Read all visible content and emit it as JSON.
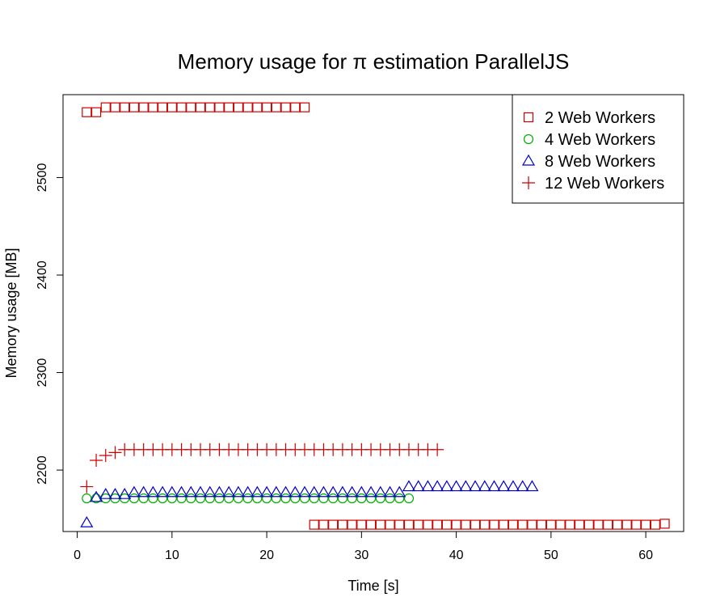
{
  "chart_data": {
    "type": "scatter",
    "title": "Memory usage for π estimation ParallelJS",
    "xlabel": "Time [s]",
    "ylabel": "Memory usage [MB]",
    "xlim": [
      -1.5,
      64
    ],
    "ylim": [
      2137,
      2585
    ],
    "x_ticks": [
      0,
      10,
      20,
      30,
      40,
      50,
      60
    ],
    "y_ticks": [
      2200,
      2300,
      2400,
      2500
    ],
    "grid": false,
    "legend_position": "top-right",
    "colors": {
      "red": "#cc0000",
      "green": "#00aa00",
      "blue": "#0000cc"
    },
    "series": [
      {
        "name": "2 Web Workers",
        "marker": "square",
        "color": "#cc0000",
        "points": [
          [
            1,
            2567
          ],
          [
            2,
            2567
          ],
          [
            3,
            2572
          ],
          [
            4,
            2572
          ],
          [
            5,
            2572
          ],
          [
            6,
            2572
          ],
          [
            7,
            2572
          ],
          [
            8,
            2572
          ],
          [
            9,
            2572
          ],
          [
            10,
            2572
          ],
          [
            11,
            2572
          ],
          [
            12,
            2572
          ],
          [
            13,
            2572
          ],
          [
            14,
            2572
          ],
          [
            15,
            2572
          ],
          [
            16,
            2572
          ],
          [
            17,
            2572
          ],
          [
            18,
            2572
          ],
          [
            19,
            2572
          ],
          [
            20,
            2572
          ],
          [
            21,
            2572
          ],
          [
            22,
            2572
          ],
          [
            23,
            2572
          ],
          [
            24,
            2572
          ],
          [
            25,
            2144
          ],
          [
            26,
            2144
          ],
          [
            27,
            2144
          ],
          [
            28,
            2144
          ],
          [
            29,
            2144
          ],
          [
            30,
            2144
          ],
          [
            31,
            2144
          ],
          [
            32,
            2144
          ],
          [
            33,
            2144
          ],
          [
            34,
            2144
          ],
          [
            35,
            2144
          ],
          [
            36,
            2144
          ],
          [
            37,
            2144
          ],
          [
            38,
            2144
          ],
          [
            39,
            2144
          ],
          [
            40,
            2144
          ],
          [
            41,
            2144
          ],
          [
            42,
            2144
          ],
          [
            43,
            2144
          ],
          [
            44,
            2144
          ],
          [
            45,
            2144
          ],
          [
            46,
            2144
          ],
          [
            47,
            2144
          ],
          [
            48,
            2144
          ],
          [
            49,
            2144
          ],
          [
            50,
            2144
          ],
          [
            51,
            2144
          ],
          [
            52,
            2144
          ],
          [
            53,
            2144
          ],
          [
            54,
            2144
          ],
          [
            55,
            2144
          ],
          [
            56,
            2144
          ],
          [
            57,
            2144
          ],
          [
            58,
            2144
          ],
          [
            59,
            2144
          ],
          [
            60,
            2144
          ],
          [
            61,
            2144
          ],
          [
            62,
            2145
          ]
        ]
      },
      {
        "name": "4 Web Workers",
        "marker": "circle",
        "color": "#00aa00",
        "points": [
          [
            1,
            2171
          ],
          [
            2,
            2171
          ],
          [
            3,
            2171
          ],
          [
            4,
            2171
          ],
          [
            5,
            2171
          ],
          [
            6,
            2171
          ],
          [
            7,
            2171
          ],
          [
            8,
            2171
          ],
          [
            9,
            2171
          ],
          [
            10,
            2171
          ],
          [
            11,
            2171
          ],
          [
            12,
            2171
          ],
          [
            13,
            2171
          ],
          [
            14,
            2171
          ],
          [
            15,
            2171
          ],
          [
            16,
            2171
          ],
          [
            17,
            2171
          ],
          [
            18,
            2171
          ],
          [
            19,
            2171
          ],
          [
            20,
            2171
          ],
          [
            21,
            2171
          ],
          [
            22,
            2171
          ],
          [
            23,
            2171
          ],
          [
            24,
            2171
          ],
          [
            25,
            2171
          ],
          [
            26,
            2171
          ],
          [
            27,
            2171
          ],
          [
            28,
            2171
          ],
          [
            29,
            2171
          ],
          [
            30,
            2171
          ],
          [
            31,
            2171
          ],
          [
            32,
            2171
          ],
          [
            33,
            2171
          ],
          [
            34,
            2171
          ],
          [
            35,
            2171
          ]
        ]
      },
      {
        "name": "8 Web Workers",
        "marker": "triangle",
        "color": "#0000cc",
        "points": [
          [
            1,
            2146
          ],
          [
            2,
            2172
          ],
          [
            3,
            2175
          ],
          [
            4,
            2175
          ],
          [
            5,
            2175
          ],
          [
            6,
            2177
          ],
          [
            7,
            2177
          ],
          [
            8,
            2177
          ],
          [
            9,
            2177
          ],
          [
            10,
            2177
          ],
          [
            11,
            2177
          ],
          [
            12,
            2177
          ],
          [
            13,
            2177
          ],
          [
            14,
            2177
          ],
          [
            15,
            2177
          ],
          [
            16,
            2177
          ],
          [
            17,
            2177
          ],
          [
            18,
            2177
          ],
          [
            19,
            2177
          ],
          [
            20,
            2177
          ],
          [
            21,
            2177
          ],
          [
            22,
            2177
          ],
          [
            23,
            2177
          ],
          [
            24,
            2177
          ],
          [
            25,
            2177
          ],
          [
            26,
            2177
          ],
          [
            27,
            2177
          ],
          [
            28,
            2177
          ],
          [
            29,
            2177
          ],
          [
            30,
            2177
          ],
          [
            31,
            2177
          ],
          [
            32,
            2177
          ],
          [
            33,
            2177
          ],
          [
            34,
            2177
          ],
          [
            35,
            2183
          ],
          [
            36,
            2183
          ],
          [
            37,
            2183
          ],
          [
            38,
            2183
          ],
          [
            39,
            2183
          ],
          [
            40,
            2183
          ],
          [
            41,
            2183
          ],
          [
            42,
            2183
          ],
          [
            43,
            2183
          ],
          [
            44,
            2183
          ],
          [
            45,
            2183
          ],
          [
            46,
            2183
          ],
          [
            47,
            2183
          ],
          [
            48,
            2183
          ]
        ]
      },
      {
        "name": "12 Web Workers",
        "marker": "plus",
        "color": "#cc0000",
        "points": [
          [
            1,
            2183
          ],
          [
            2,
            2210
          ],
          [
            3,
            2215
          ],
          [
            4,
            2218
          ],
          [
            5,
            2221
          ],
          [
            6,
            2221
          ],
          [
            7,
            2221
          ],
          [
            8,
            2221
          ],
          [
            9,
            2221
          ],
          [
            10,
            2221
          ],
          [
            11,
            2221
          ],
          [
            12,
            2221
          ],
          [
            13,
            2221
          ],
          [
            14,
            2221
          ],
          [
            15,
            2221
          ],
          [
            16,
            2221
          ],
          [
            17,
            2221
          ],
          [
            18,
            2221
          ],
          [
            19,
            2221
          ],
          [
            20,
            2221
          ],
          [
            21,
            2221
          ],
          [
            22,
            2221
          ],
          [
            23,
            2221
          ],
          [
            24,
            2221
          ],
          [
            25,
            2221
          ],
          [
            26,
            2221
          ],
          [
            27,
            2221
          ],
          [
            28,
            2221
          ],
          [
            29,
            2221
          ],
          [
            30,
            2221
          ],
          [
            31,
            2221
          ],
          [
            32,
            2221
          ],
          [
            33,
            2221
          ],
          [
            34,
            2221
          ],
          [
            35,
            2221
          ],
          [
            36,
            2221
          ],
          [
            37,
            2221
          ],
          [
            38,
            2221
          ]
        ]
      }
    ]
  }
}
